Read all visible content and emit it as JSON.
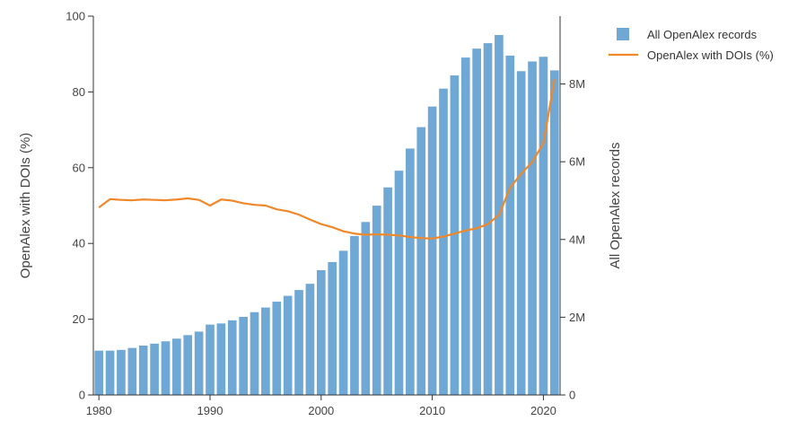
{
  "chart_data": {
    "type": "bar",
    "title": "",
    "xlabel": "",
    "ylabel_left": "OpenAlex with DOIs (%)",
    "ylabel_right": "All OpenAlex records",
    "x_ticks": [
      "1980",
      "1990",
      "2000",
      "2010",
      "2020"
    ],
    "y_left_ticks": [
      "0",
      "20",
      "40",
      "60",
      "80",
      "100"
    ],
    "y_right_ticks": [
      "0",
      "2M",
      "4M",
      "6M",
      "8M"
    ],
    "ylim_left": [
      0,
      100
    ],
    "ylim_right": [
      0,
      9745000
    ],
    "x_range": [
      1979.5,
      2021.5
    ],
    "years": [
      1980,
      1981,
      1982,
      1983,
      1984,
      1985,
      1986,
      1987,
      1988,
      1989,
      1990,
      1991,
      1992,
      1993,
      1994,
      1995,
      1996,
      1997,
      1998,
      1999,
      2000,
      2001,
      2002,
      2003,
      2004,
      2005,
      2006,
      2007,
      2008,
      2009,
      2010,
      2011,
      2012,
      2013,
      2014,
      2015,
      2016,
      2017,
      2018,
      2019,
      2020,
      2021
    ],
    "series": [
      {
        "name": "All OpenAlex records",
        "kind": "bar",
        "axis": "right",
        "color": "#6fa8d4",
        "values": [
          1140000,
          1140000,
          1160000,
          1210000,
          1270000,
          1320000,
          1380000,
          1450000,
          1540000,
          1630000,
          1810000,
          1840000,
          1920000,
          2010000,
          2130000,
          2250000,
          2400000,
          2550000,
          2700000,
          2860000,
          3210000,
          3420000,
          3710000,
          4090000,
          4450000,
          4870000,
          5340000,
          5770000,
          6340000,
          6890000,
          7420000,
          7880000,
          8220000,
          8680000,
          8910000,
          9050000,
          9260000,
          8730000,
          8330000,
          8580000,
          8700000,
          8350000
        ]
      },
      {
        "name": "OpenAlex with DOIs (%)",
        "kind": "line",
        "axis": "left",
        "color": "#f0882a",
        "values": [
          49.5,
          51.7,
          51.5,
          51.4,
          51.6,
          51.5,
          51.4,
          51.6,
          51.9,
          51.5,
          50.0,
          51.6,
          51.3,
          50.6,
          50.2,
          50.0,
          49.0,
          48.5,
          47.6,
          46.3,
          45.1,
          44.3,
          43.2,
          42.6,
          42.3,
          42.4,
          42.3,
          42.1,
          41.7,
          41.4,
          41.3,
          41.8,
          42.6,
          43.4,
          44.0,
          45.1,
          47.5,
          54.7,
          58.4,
          61.5,
          66.5,
          83.3
        ]
      }
    ],
    "legend_position": "top-right"
  }
}
